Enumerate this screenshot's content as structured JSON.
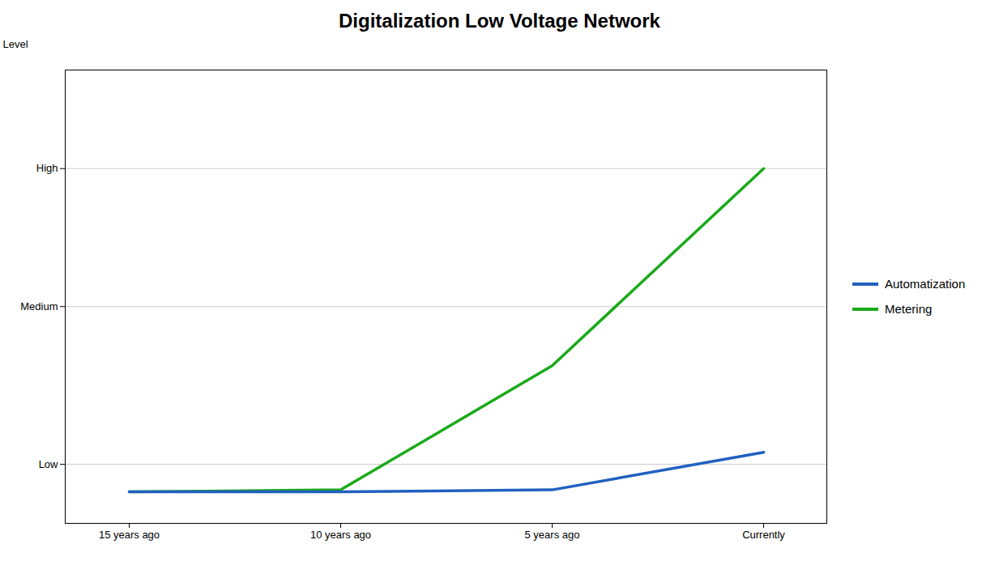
{
  "chart_data": {
    "type": "line",
    "title": "Digitalization Low Voltage Network",
    "y_label": "Level",
    "categories": [
      "15 years ago",
      "10 years ago",
      "5 years ago",
      "Currently"
    ],
    "series": [
      {
        "name": "Automatization",
        "color": "#2060c0",
        "values": [
          0.3,
          0.3,
          0.35,
          1.3
        ]
      },
      {
        "name": "Metering",
        "color": "#1aaa1a",
        "values": [
          0.3,
          0.35,
          3.5,
          8.5
        ]
      }
    ],
    "ylim": [
      -0.5,
      11.0
    ],
    "yticks": [
      {
        "value": 1.0,
        "label": "Low"
      },
      {
        "value": 5.0,
        "label": "Medium"
      },
      {
        "value": 8.5,
        "label": "High"
      }
    ],
    "grid": true,
    "legend": "right"
  }
}
